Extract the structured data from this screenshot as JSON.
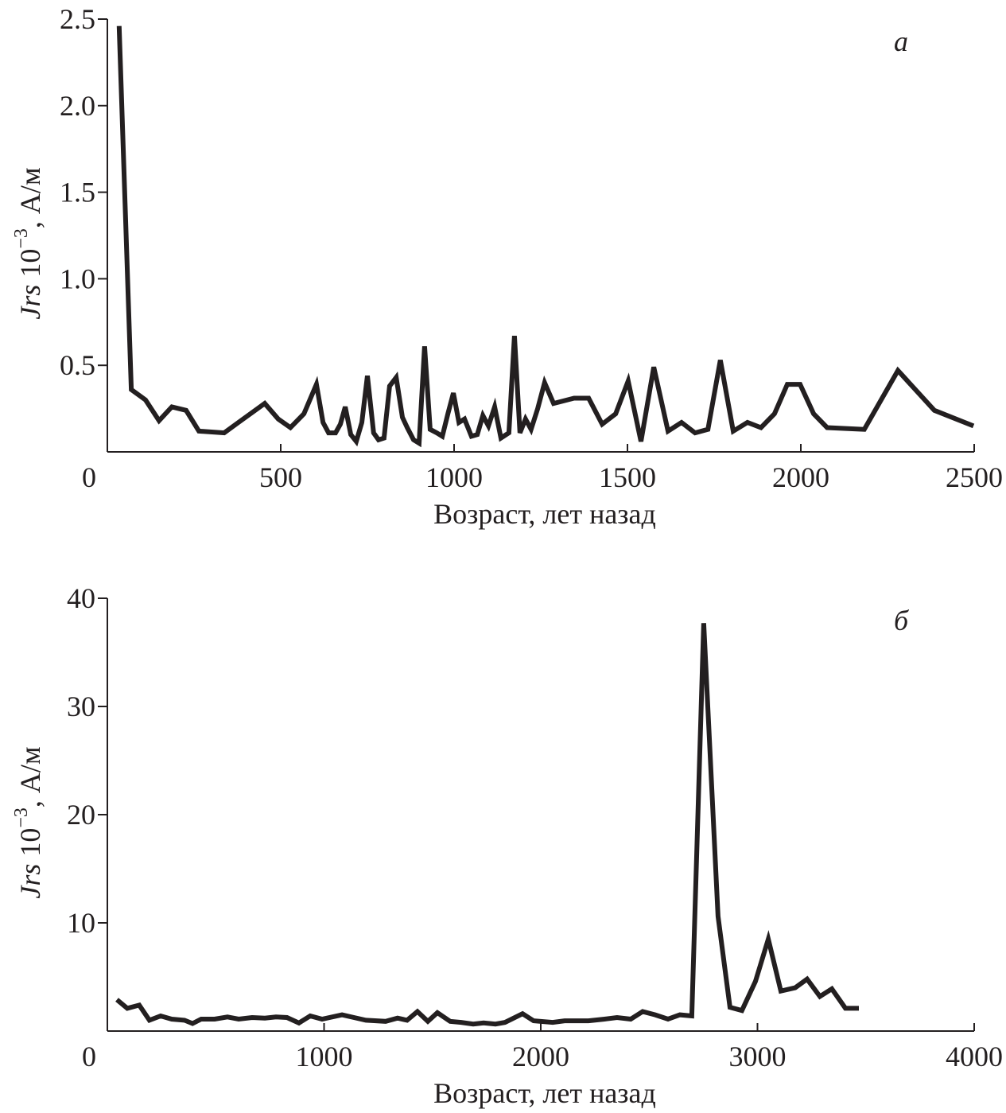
{
  "chart_data": [
    {
      "type": "line",
      "panel_label": "а",
      "ylabel": {
        "symbol": "Jrs",
        "base": " 10",
        "exponent": "−3",
        "unit": ", А/м"
      },
      "xlabel": "Возраст, лет назад",
      "color": "#231f20",
      "xlim": [
        0,
        2500
      ],
      "xticks": [
        0,
        500,
        1000,
        1500,
        2000,
        2500
      ],
      "ylim": [
        0,
        2.5
      ],
      "yticks": [
        0.5,
        {
          "value": 1,
          "label": "1.0"
        },
        1.5,
        {
          "value": 2,
          "label": "2.0"
        },
        2.5
      ],
      "x": [
        34,
        69,
        110,
        149,
        186,
        227,
        264,
        337,
        378,
        454,
        493,
        528,
        567,
        603,
        622,
        638,
        658,
        672,
        686,
        702,
        718,
        734,
        750,
        768,
        782,
        798,
        814,
        833,
        851,
        865,
        883,
        899,
        915,
        931,
        950,
        966,
        982,
        998,
        1014,
        1030,
        1050,
        1067,
        1083,
        1099,
        1117,
        1135,
        1158,
        1174,
        1190,
        1206,
        1222,
        1241,
        1261,
        1287,
        1346,
        1388,
        1427,
        1466,
        1502,
        1539,
        1576,
        1617,
        1656,
        1695,
        1732,
        1768,
        1805,
        1846,
        1885,
        1924,
        1961,
        1998,
        2037,
        2076,
        2183,
        2280,
        2385,
        2498
      ],
      "values": [
        2.46,
        0.36,
        0.3,
        0.18,
        0.26,
        0.24,
        0.12,
        0.11,
        0.17,
        0.28,
        0.19,
        0.14,
        0.22,
        0.39,
        0.17,
        0.11,
        0.11,
        0.16,
        0.26,
        0.1,
        0.06,
        0.17,
        0.44,
        0.11,
        0.07,
        0.08,
        0.38,
        0.43,
        0.2,
        0.14,
        0.07,
        0.05,
        0.61,
        0.13,
        0.11,
        0.09,
        0.22,
        0.34,
        0.17,
        0.19,
        0.09,
        0.1,
        0.21,
        0.15,
        0.26,
        0.08,
        0.11,
        0.67,
        0.11,
        0.19,
        0.13,
        0.25,
        0.4,
        0.28,
        0.31,
        0.31,
        0.16,
        0.22,
        0.41,
        0.06,
        0.49,
        0.12,
        0.17,
        0.11,
        0.13,
        0.53,
        0.12,
        0.17,
        0.14,
        0.22,
        0.39,
        0.39,
        0.22,
        0.14,
        0.13,
        0.47,
        0.24,
        0.15
      ]
    },
    {
      "type": "line",
      "panel_label": "б",
      "ylabel": {
        "symbol": "Jrs",
        "base": " 10",
        "exponent": "−3",
        "unit": ", А/м"
      },
      "xlabel": "Возраст, лет назад",
      "color": "#231f20",
      "xlim": [
        0,
        4000
      ],
      "xticks": [
        0,
        1000,
        2000,
        3000,
        4000
      ],
      "ylim": [
        0,
        40
      ],
      "yticks": [
        10,
        20,
        30,
        40
      ],
      "x": [
        44,
        92,
        147,
        194,
        246,
        297,
        356,
        393,
        433,
        495,
        554,
        606,
        668,
        727,
        778,
        829,
        884,
        936,
        991,
        1083,
        1138,
        1193,
        1284,
        1339,
        1383,
        1431,
        1479,
        1523,
        1582,
        1633,
        1688,
        1736,
        1791,
        1835,
        1916,
        1967,
        2055,
        2110,
        2220,
        2294,
        2352,
        2415,
        2470,
        2528,
        2587,
        2642,
        2697,
        2752,
        2818,
        2873,
        2928,
        2991,
        3050,
        3108,
        3174,
        3229,
        3288,
        3343,
        3406,
        3468
      ],
      "values": [
        2.9,
        2.1,
        2.4,
        1.0,
        1.4,
        1.1,
        1.0,
        0.7,
        1.1,
        1.1,
        1.3,
        1.1,
        1.25,
        1.2,
        1.3,
        1.25,
        0.75,
        1.4,
        1.1,
        1.5,
        1.25,
        1.0,
        0.9,
        1.2,
        1.0,
        1.8,
        0.9,
        1.7,
        0.9,
        0.8,
        0.65,
        0.75,
        0.65,
        0.8,
        1.6,
        0.95,
        0.8,
        0.95,
        0.95,
        1.1,
        1.25,
        1.1,
        1.8,
        1.5,
        1.1,
        1.5,
        1.4,
        37.7,
        10.6,
        2.2,
        1.9,
        4.6,
        8.5,
        3.7,
        4.0,
        4.8,
        3.2,
        3.9,
        2.1,
        2.1
      ]
    }
  ]
}
